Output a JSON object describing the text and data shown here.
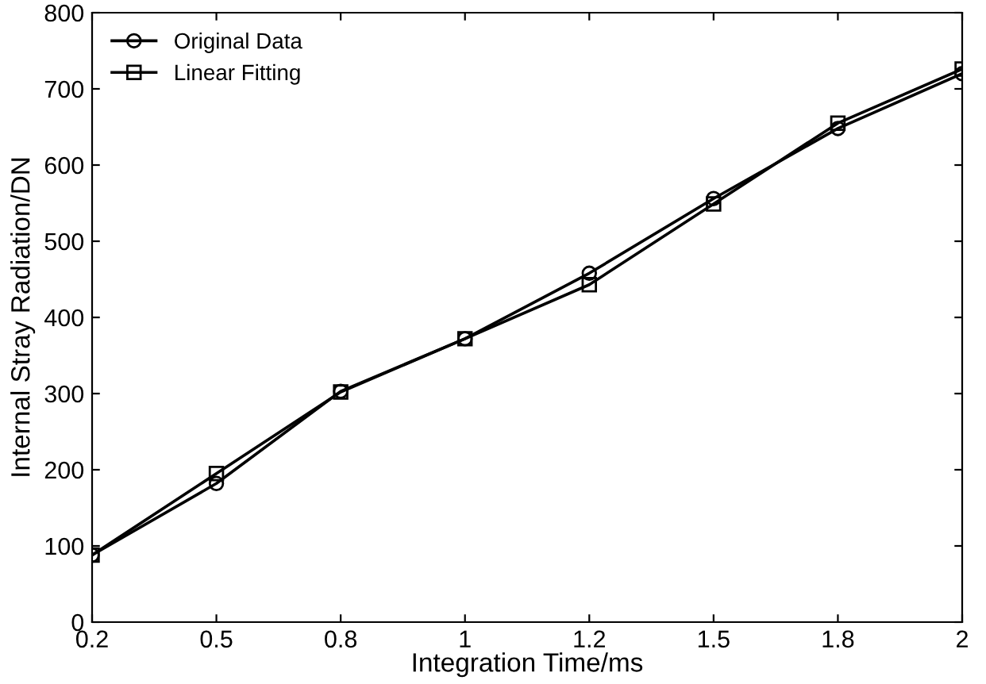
{
  "chart_data": {
    "type": "line",
    "xlabel": "Integration Time/ms",
    "ylabel": "Internal Stray Radiation/DN",
    "categories": [
      "0.2",
      "0.5",
      "0.8",
      "1",
      "1.2",
      "1.5",
      "1.8",
      "2"
    ],
    "series": [
      {
        "name": "Original Data",
        "color": "#000000",
        "marker": "circle",
        "values": [
          88,
          182,
          303,
          372,
          458,
          556,
          648,
          720
        ]
      },
      {
        "name": "Linear Fitting",
        "color": "#010101",
        "marker": "square",
        "values": [
          88,
          195,
          302,
          372,
          443,
          549,
          655,
          726
        ]
      }
    ],
    "ylim": [
      0,
      800
    ],
    "yticks": [
      0,
      100,
      200,
      300,
      400,
      500,
      600,
      700,
      800
    ],
    "grid": false,
    "legend": "top left",
    "line_style": "solid"
  }
}
